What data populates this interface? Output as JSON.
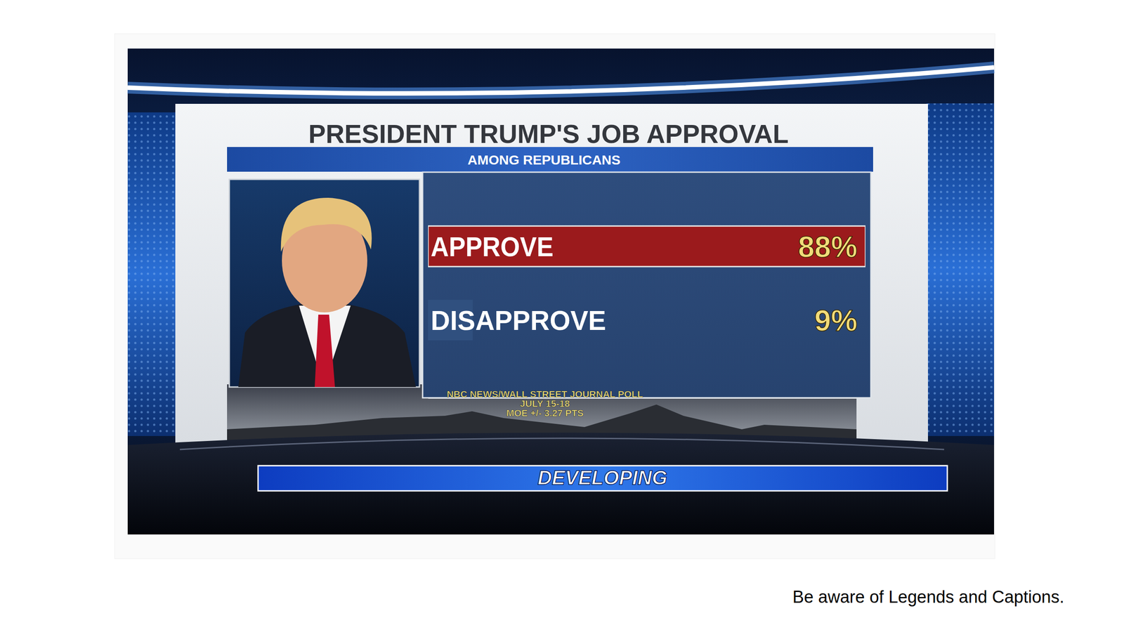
{
  "chart_data": {
    "type": "bar",
    "orientation": "horizontal",
    "title": "PRESIDENT TRUMP'S JOB APPROVAL",
    "subtitle": "AMONG REPUBLICANS",
    "categories": [
      "APPROVE",
      "DISAPPROVE"
    ],
    "values": [
      88,
      9
    ],
    "value_labels": [
      "88%",
      "9%"
    ],
    "data_labels": true,
    "colors": [
      "#9b1a1c",
      "#30507f"
    ],
    "xlim": [
      0,
      88
    ],
    "tick_labels": false,
    "source": [
      "NBC NEWS/WALL STREET JOURNAL POLL",
      "JULY 15-18",
      "MOE +/- 3.27 PTS"
    ],
    "banner": "DEVELOPING",
    "caption": "Be aware of Legends and Captions."
  }
}
